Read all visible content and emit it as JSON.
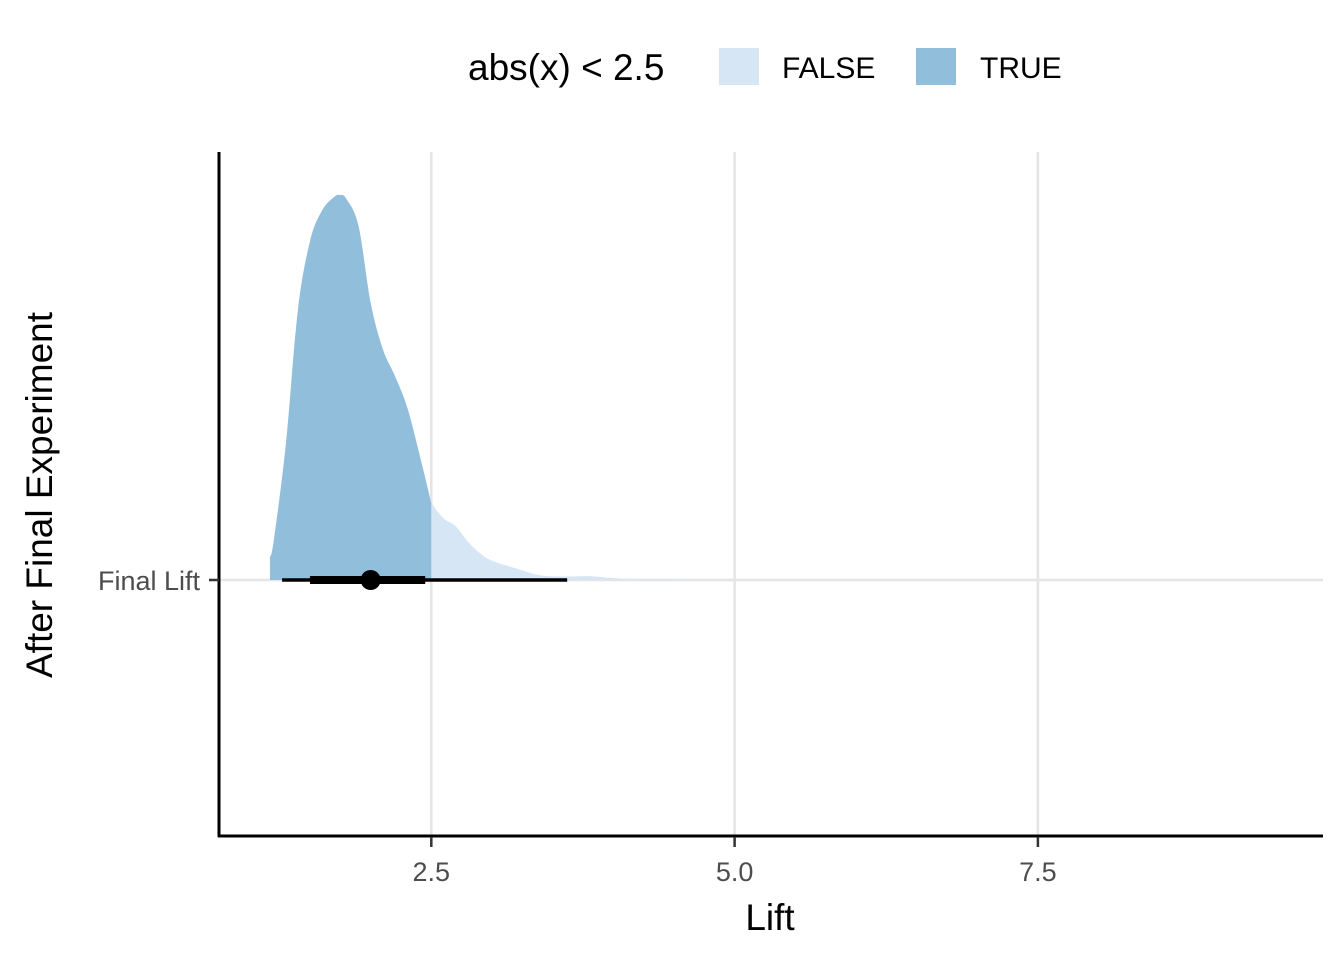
{
  "chart_data": {
    "type": "area",
    "subtype": "halfeye-density-with-interval",
    "title": "",
    "xlabel": "Lift",
    "ylabel": "After Final Experiment",
    "xlim": [
      0.75,
      9.85
    ],
    "x_ticks": [
      2.5,
      5.0,
      7.5
    ],
    "x_tick_labels": [
      "2.5",
      "5.0",
      "7.5"
    ],
    "y_categories": [
      "Final Lift"
    ],
    "grid": "major-only",
    "legend": {
      "title": "abs(x) < 2.5",
      "position": "top",
      "entries": [
        {
          "label": "FALSE",
          "color": "#d6e6f4"
        },
        {
          "label": "TRUE",
          "color": "#91bfdb"
        }
      ]
    },
    "fill_threshold": 2.5,
    "density": {
      "x": [
        1.17,
        1.2,
        1.3,
        1.4,
        1.5,
        1.6,
        1.7,
        1.75,
        1.8,
        1.9,
        2.0,
        2.1,
        2.2,
        2.3,
        2.4,
        2.5,
        2.6,
        2.7,
        2.8,
        2.9,
        3.0,
        3.2,
        3.4,
        3.6,
        3.8,
        4.0,
        4.2,
        4.5,
        4.7,
        5.0,
        6.0,
        7.0,
        8.0,
        9.0,
        9.85
      ],
      "y": [
        0.06,
        0.1,
        0.35,
        0.7,
        0.88,
        0.96,
        0.995,
        1.0,
        0.99,
        0.92,
        0.72,
        0.6,
        0.53,
        0.45,
        0.33,
        0.2,
        0.16,
        0.14,
        0.1,
        0.07,
        0.05,
        0.03,
        0.012,
        0.009,
        0.01,
        0.005,
        0.003,
        0.002,
        0.0,
        0.0,
        0.0,
        0.0,
        0.0,
        0.0,
        0.0
      ]
    },
    "point_estimate": 2.0,
    "intervals": [
      {
        "level": "inner",
        "lower": 1.5,
        "upper": 2.45
      },
      {
        "level": "outer",
        "lower": 1.27,
        "upper": 3.62
      }
    ],
    "colors": {
      "true_fill": "#91bfdb",
      "false_fill": "#d6e6f4",
      "grid": "#e5e5e5",
      "axis": "#000000",
      "interval": "#000000"
    }
  }
}
